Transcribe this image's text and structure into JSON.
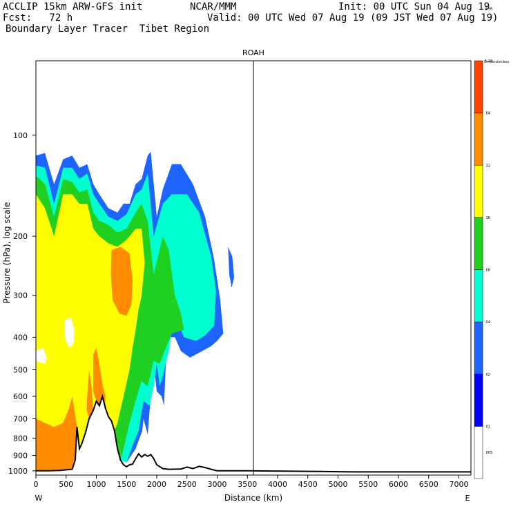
{
  "header": {
    "model": "ACCLIP 15km ARW-GFS init",
    "org": "NCAR/MMM",
    "init": "Init: 00 UTC Sun 04 Aug 19",
    "fcst": "Fcst:   72 h",
    "valid": "Valid: 00 UTC Wed 07 Aug 19 (09 JST Wed 07 Aug 19)",
    "product": "Boundary Layer Tracer  Tibet Region"
  },
  "chart_data": {
    "type": "heatmap",
    "title": "ROAH",
    "xlabel": "Distance (km)",
    "ylabel": "Pressure (hPa), log scale",
    "x_ticks": [
      "0",
      "500",
      "1000",
      "1500",
      "2000",
      "2500",
      "3000",
      "3500",
      "4000",
      "4500",
      "5000",
      "5500",
      "6000",
      "6500",
      "7000"
    ],
    "y_ticks": [
      "100",
      "200",
      "300",
      "400",
      "500",
      "600",
      "700",
      "800",
      "900",
      "1000"
    ],
    "xlim": [
      0,
      7200
    ],
    "ylim": [
      1030,
      60
    ],
    "y_scale": "log",
    "end_labels": {
      "left": "W",
      "right": "E"
    },
    "marker_line_x": 3600,
    "colorbar": {
      "unit": "Dimensionless",
      "levels": [
        ".005",
        ".01",
        ".02",
        ".04",
        ".08",
        ".16",
        ".32",
        ".64",
        "1.28",
        "2.56"
      ],
      "colors": [
        "#ffffff",
        "#0000ff",
        "#1e64ff",
        "#00ffd0",
        "#20d020",
        "#ffff00",
        "#ff8c00",
        "#ff4400"
      ]
    },
    "shading_colors": {
      "blue": "#1e64ff",
      "cyan": "#00ffd0",
      "green": "#20d020",
      "yellow": "#ffff00",
      "orange": "#ff8c00"
    },
    "terrain": [
      [
        0,
        1000
      ],
      [
        200,
        1000
      ],
      [
        400,
        998
      ],
      [
        600,
        990
      ],
      [
        650,
        930
      ],
      [
        680,
        740
      ],
      [
        720,
        860
      ],
      [
        760,
        830
      ],
      [
        820,
        770
      ],
      [
        880,
        700
      ],
      [
        950,
        660
      ],
      [
        1000,
        620
      ],
      [
        1050,
        640
      ],
      [
        1100,
        600
      ],
      [
        1150,
        650
      ],
      [
        1200,
        690
      ],
      [
        1250,
        710
      ],
      [
        1300,
        760
      ],
      [
        1350,
        860
      ],
      [
        1400,
        930
      ],
      [
        1450,
        960
      ],
      [
        1500,
        972
      ],
      [
        1550,
        960
      ],
      [
        1600,
        955
      ],
      [
        1650,
        920
      ],
      [
        1700,
        890
      ],
      [
        1750,
        910
      ],
      [
        1800,
        895
      ],
      [
        1850,
        905
      ],
      [
        1900,
        895
      ],
      [
        1950,
        920
      ],
      [
        2000,
        960
      ],
      [
        2100,
        985
      ],
      [
        2200,
        990
      ],
      [
        2400,
        988
      ],
      [
        2500,
        975
      ],
      [
        2600,
        985
      ],
      [
        2700,
        970
      ],
      [
        2800,
        978
      ],
      [
        2900,
        990
      ],
      [
        3000,
        1000
      ],
      [
        3500,
        1000
      ],
      [
        4700,
        1005
      ],
      [
        5300,
        1008
      ],
      [
        7200,
        1008
      ]
    ],
    "tracer_regions": [
      {
        "level": "blue",
        "polygon": [
          [
            0,
            115
          ],
          [
            150,
            113
          ],
          [
            300,
            140
          ],
          [
            450,
            118
          ],
          [
            600,
            115
          ],
          [
            720,
            125
          ],
          [
            850,
            122
          ],
          [
            950,
            140
          ],
          [
            1050,
            150
          ],
          [
            1200,
            165
          ],
          [
            1350,
            170
          ],
          [
            1450,
            160
          ],
          [
            1550,
            160
          ],
          [
            1650,
            140
          ],
          [
            1750,
            135
          ],
          [
            1850,
            115
          ],
          [
            1900,
            112
          ],
          [
            2000,
            175
          ],
          [
            2100,
            145
          ],
          [
            2250,
            122
          ],
          [
            2400,
            122
          ],
          [
            2600,
            140
          ],
          [
            2800,
            175
          ],
          [
            2950,
            235
          ],
          [
            3050,
            310
          ],
          [
            3100,
            390
          ],
          [
            3000,
            410
          ],
          [
            2900,
            425
          ],
          [
            2750,
            440
          ],
          [
            2550,
            460
          ],
          [
            2400,
            440
          ],
          [
            2300,
            400
          ],
          [
            2200,
            400
          ],
          [
            2150,
            480
          ],
          [
            2120,
            640
          ],
          [
            2080,
            600
          ],
          [
            2000,
            580
          ],
          [
            1950,
            480
          ],
          [
            1900,
            600
          ],
          [
            1850,
            780
          ],
          [
            1780,
            700
          ],
          [
            1760,
            760
          ],
          [
            1650,
            860
          ],
          [
            1500,
            945
          ],
          [
            1400,
            930
          ],
          [
            1350,
            860
          ],
          [
            1300,
            760
          ],
          [
            1250,
            710
          ],
          [
            1200,
            690
          ],
          [
            1150,
            650
          ],
          [
            1100,
            600
          ],
          [
            1050,
            640
          ],
          [
            1000,
            620
          ],
          [
            950,
            660
          ],
          [
            880,
            700
          ],
          [
            820,
            770
          ],
          [
            760,
            830
          ],
          [
            720,
            860
          ],
          [
            680,
            740
          ],
          [
            650,
            930
          ],
          [
            600,
            990
          ],
          [
            400,
            998
          ],
          [
            200,
            1000
          ],
          [
            0,
            1000
          ]
        ]
      },
      {
        "level": "blue",
        "polygon": [
          [
            3180,
            215
          ],
          [
            3250,
            230
          ],
          [
            3280,
            265
          ],
          [
            3240,
            285
          ],
          [
            3200,
            260
          ]
        ]
      },
      {
        "level": "cyan",
        "polygon": [
          [
            0,
            123
          ],
          [
            150,
            125
          ],
          [
            300,
            160
          ],
          [
            450,
            125
          ],
          [
            600,
            125
          ],
          [
            720,
            135
          ],
          [
            850,
            130
          ],
          [
            950,
            150
          ],
          [
            1050,
            160
          ],
          [
            1200,
            175
          ],
          [
            1350,
            180
          ],
          [
            1500,
            172
          ],
          [
            1650,
            150
          ],
          [
            1750,
            145
          ],
          [
            1850,
            130
          ],
          [
            1950,
            200
          ],
          [
            2100,
            160
          ],
          [
            2250,
            150
          ],
          [
            2500,
            150
          ],
          [
            2700,
            170
          ],
          [
            2900,
            230
          ],
          [
            2980,
            290
          ],
          [
            2950,
            370
          ],
          [
            2800,
            395
          ],
          [
            2650,
            410
          ],
          [
            2450,
            400
          ],
          [
            2350,
            360
          ],
          [
            2250,
            380
          ],
          [
            2200,
            440
          ],
          [
            2100,
            520
          ],
          [
            2050,
            560
          ],
          [
            2000,
            480
          ],
          [
            1950,
            560
          ],
          [
            1880,
            640
          ],
          [
            1780,
            620
          ],
          [
            1700,
            760
          ],
          [
            1600,
            840
          ],
          [
            1500,
            945
          ],
          [
            1400,
            930
          ],
          [
            1350,
            860
          ],
          [
            1300,
            760
          ],
          [
            1250,
            710
          ],
          [
            1200,
            690
          ],
          [
            1150,
            650
          ],
          [
            1100,
            600
          ],
          [
            1050,
            640
          ],
          [
            1000,
            620
          ],
          [
            950,
            660
          ],
          [
            880,
            700
          ],
          [
            820,
            770
          ],
          [
            760,
            830
          ],
          [
            720,
            860
          ],
          [
            680,
            740
          ],
          [
            650,
            930
          ],
          [
            600,
            990
          ],
          [
            400,
            998
          ],
          [
            200,
            1000
          ],
          [
            0,
            1000
          ]
        ]
      },
      {
        "level": "green",
        "polygon": [
          [
            0,
            132
          ],
          [
            150,
            140
          ],
          [
            300,
            175
          ],
          [
            450,
            135
          ],
          [
            600,
            138
          ],
          [
            720,
            148
          ],
          [
            850,
            145
          ],
          [
            950,
            170
          ],
          [
            1050,
            180
          ],
          [
            1200,
            185
          ],
          [
            1350,
            195
          ],
          [
            1500,
            190
          ],
          [
            1650,
            170
          ],
          [
            1750,
            160
          ],
          [
            1850,
            180
          ],
          [
            1950,
            260
          ],
          [
            2100,
            200
          ],
          [
            2200,
            220
          ],
          [
            2300,
            300
          ],
          [
            2400,
            340
          ],
          [
            2450,
            380
          ],
          [
            2250,
            390
          ],
          [
            2150,
            430
          ],
          [
            2050,
            480
          ],
          [
            1950,
            470
          ],
          [
            1850,
            560
          ],
          [
            1750,
            540
          ],
          [
            1650,
            620
          ],
          [
            1550,
            720
          ],
          [
            1450,
            860
          ],
          [
            1400,
            930
          ],
          [
            1350,
            860
          ],
          [
            1300,
            760
          ],
          [
            1250,
            710
          ],
          [
            1200,
            690
          ],
          [
            1150,
            650
          ],
          [
            1100,
            600
          ],
          [
            1050,
            640
          ],
          [
            1000,
            620
          ],
          [
            950,
            660
          ],
          [
            880,
            700
          ],
          [
            820,
            770
          ],
          [
            760,
            830
          ],
          [
            720,
            860
          ],
          [
            680,
            740
          ],
          [
            650,
            930
          ],
          [
            600,
            990
          ],
          [
            400,
            998
          ],
          [
            200,
            1000
          ],
          [
            0,
            1000
          ]
        ]
      },
      {
        "level": "yellow",
        "polygon": [
          [
            0,
            150
          ],
          [
            150,
            165
          ],
          [
            300,
            200
          ],
          [
            450,
            150
          ],
          [
            600,
            150
          ],
          [
            720,
            160
          ],
          [
            850,
            160
          ],
          [
            950,
            190
          ],
          [
            1050,
            200
          ],
          [
            1200,
            210
          ],
          [
            1350,
            215
          ],
          [
            1500,
            205
          ],
          [
            1650,
            190
          ],
          [
            1750,
            190
          ],
          [
            1800,
            240
          ],
          [
            1750,
            300
          ],
          [
            1700,
            330
          ],
          [
            1650,
            380
          ],
          [
            1600,
            430
          ],
          [
            1550,
            500
          ],
          [
            1450,
            600
          ],
          [
            1350,
            720
          ],
          [
            1300,
            760
          ],
          [
            1250,
            710
          ],
          [
            1200,
            690
          ],
          [
            1150,
            650
          ],
          [
            1100,
            600
          ],
          [
            1050,
            640
          ],
          [
            1000,
            620
          ],
          [
            950,
            660
          ],
          [
            880,
            700
          ],
          [
            820,
            770
          ],
          [
            760,
            830
          ],
          [
            720,
            860
          ],
          [
            680,
            740
          ],
          [
            650,
            930
          ],
          [
            600,
            990
          ],
          [
            400,
            998
          ],
          [
            200,
            1000
          ],
          [
            0,
            1000
          ]
        ]
      },
      {
        "level": "orange",
        "polygon": [
          [
            1250,
            220
          ],
          [
            1400,
            215
          ],
          [
            1550,
            225
          ],
          [
            1600,
            270
          ],
          [
            1580,
            320
          ],
          [
            1500,
            345
          ],
          [
            1380,
            340
          ],
          [
            1270,
            310
          ],
          [
            1240,
            260
          ]
        ]
      },
      {
        "level": "orange",
        "polygon": [
          [
            0,
            700
          ],
          [
            150,
            720
          ],
          [
            300,
            740
          ],
          [
            450,
            720
          ],
          [
            550,
            650
          ],
          [
            600,
            600
          ],
          [
            650,
            680
          ],
          [
            680,
            740
          ],
          [
            650,
            930
          ],
          [
            600,
            990
          ],
          [
            400,
            998
          ],
          [
            200,
            1000
          ],
          [
            0,
            1000
          ]
        ]
      },
      {
        "level": "orange",
        "polygon": [
          [
            950,
            450
          ],
          [
            1000,
            430
          ],
          [
            1050,
            480
          ],
          [
            1100,
            550
          ],
          [
            1150,
            600
          ],
          [
            1150,
            650
          ],
          [
            1100,
            600
          ],
          [
            1050,
            640
          ],
          [
            1000,
            620
          ],
          [
            950,
            580
          ]
        ]
      },
      {
        "level": "orange",
        "polygon": [
          [
            850,
            600
          ],
          [
            880,
            500
          ],
          [
            920,
            560
          ],
          [
            950,
            660
          ],
          [
            880,
            700
          ],
          [
            840,
            660
          ]
        ]
      }
    ],
    "blank_regions": [
      {
        "polygon": [
          [
            0,
            440
          ],
          [
            120,
            430
          ],
          [
            180,
            460
          ],
          [
            150,
            480
          ],
          [
            60,
            475
          ],
          [
            0,
            470
          ]
        ]
      },
      {
        "polygon": [
          [
            480,
            355
          ],
          [
            580,
            350
          ],
          [
            640,
            380
          ],
          [
            620,
            420
          ],
          [
            540,
            430
          ],
          [
            480,
            400
          ]
        ]
      }
    ]
  }
}
